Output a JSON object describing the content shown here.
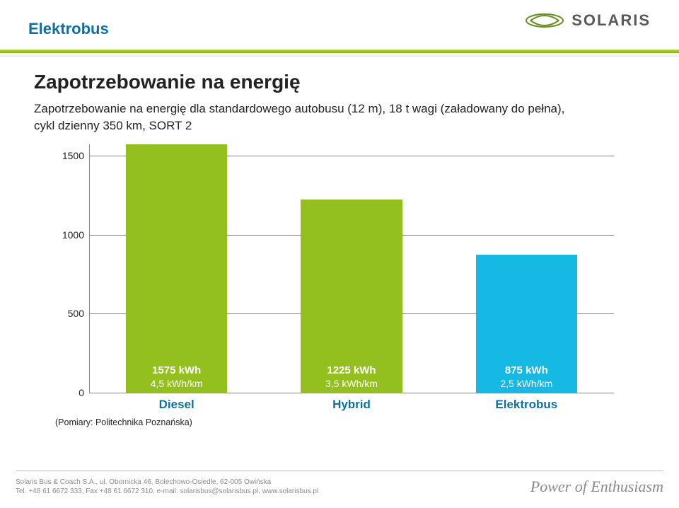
{
  "header": {
    "title": "Elektrobus",
    "brand": "SOLARIS",
    "title_color": "#0f6fa3",
    "brand_color": "#58595b"
  },
  "body": {
    "heading": "Zapotrzebowanie na energię",
    "subtext_line1": "Zapotrzebowanie na energię dla standardowego autobusu (12 m), 18 t wagi (załadowany do pełna),",
    "subtext_line2": "cykl dzienny 350 km, SORT 2"
  },
  "chart": {
    "type": "bar",
    "ymax": 1575,
    "yticks": [
      0,
      500,
      1000,
      1500
    ],
    "background_color": "#ffffff",
    "gridline_color": "#888888",
    "axis_color": "#888888",
    "bar_width_ratio": 0.58,
    "series": [
      {
        "category": "Diesel",
        "value": 1575,
        "label": "1575 kWh",
        "sublabel": "4,5 kWh/km",
        "color": "#93c01f"
      },
      {
        "category": "Hybrid",
        "value": 1225,
        "label": "1225 kWh",
        "sublabel": "3,5 kWh/km",
        "color": "#93c01f"
      },
      {
        "category": "Elektrobus",
        "value": 875,
        "label": "875 kWh",
        "sublabel": "2,5 kWh/km",
        "color": "#16b8e4"
      }
    ],
    "xlabel_color": "#0f6fa3",
    "xlabel_fontsize": 17,
    "ytick_fontsize": 14,
    "barlabel_color": "#ffffff",
    "barlabel_fontsize": 15,
    "caption": "(Pomiary: Politechnika Poznańska)"
  },
  "footer": {
    "line1": "Solaris Bus & Coach S.A., ul. Obornicka 46, Bolechowo-Osiedle, 62-005 Owińska",
    "line2": "Tel. +48 61 6672 333, Fax +48 61 6672 310, e-mail: solarisbus@solarisbus.pl, www.solarisbus.pl",
    "tagline": "Power of Enthusiasm"
  }
}
